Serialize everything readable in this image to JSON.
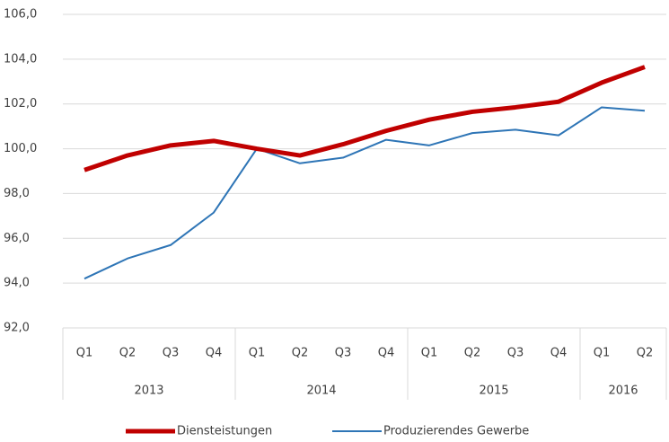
{
  "chart_data": {
    "type": "line",
    "category_groups": [
      {
        "name": "2013",
        "categories": [
          "Q1",
          "Q2",
          "Q3",
          "Q4"
        ]
      },
      {
        "name": "2014",
        "categories": [
          "Q1",
          "Q2",
          "Q3",
          "Q4"
        ]
      },
      {
        "name": "2015",
        "categories": [
          "Q1",
          "Q2",
          "Q3",
          "Q4"
        ]
      },
      {
        "name": "2016",
        "categories": [
          "Q1",
          "Q2"
        ]
      }
    ],
    "series": [
      {
        "name": "Diensteistungen",
        "color": "#c00000",
        "width": 5,
        "values": [
          99.05,
          99.7,
          100.15,
          100.35,
          100.0,
          99.7,
          100.2,
          100.8,
          101.3,
          101.65,
          101.85,
          102.1,
          102.95,
          103.65
        ]
      },
      {
        "name": "Produzierendes Gewerbe",
        "color": "#2e75b6",
        "width": 2,
        "values": [
          94.2,
          95.1,
          95.7,
          97.15,
          100.0,
          99.35,
          99.6,
          100.4,
          100.15,
          100.7,
          100.85,
          100.6,
          101.85,
          101.7
        ]
      }
    ],
    "ylim": [
      92,
      106
    ],
    "yticks": [
      {
        "value": 92,
        "label": "92,0"
      },
      {
        "value": 94,
        "label": "94,0"
      },
      {
        "value": 96,
        "label": "96,0"
      },
      {
        "value": 98,
        "label": "98,0"
      },
      {
        "value": 100,
        "label": "100,0"
      },
      {
        "value": 102,
        "label": "102,0"
      },
      {
        "value": 104,
        "label": "104,0"
      },
      {
        "value": 106,
        "label": "106,0"
      }
    ],
    "grid": true,
    "legend": "bottom"
  }
}
